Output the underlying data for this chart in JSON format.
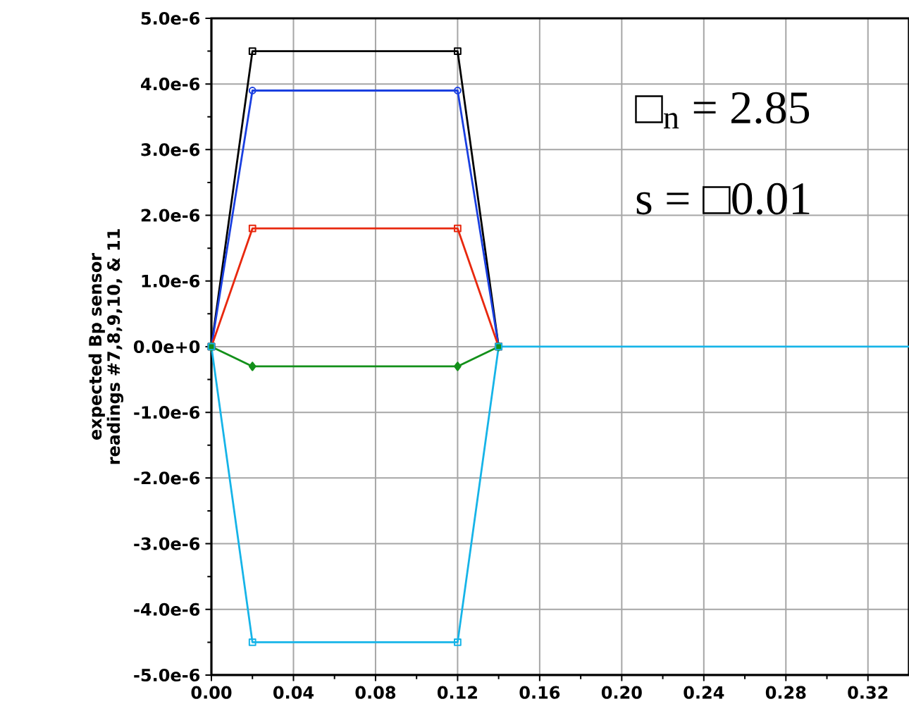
{
  "chart_data": {
    "type": "line",
    "ylabel": "expected  Bp  sensor  readings #7,8,9,10,  &  11",
    "annotations": [
      "□$_{n}$ = 2.85",
      "s = □0.01"
    ],
    "xlim": [
      0,
      0.34
    ],
    "xticks": [
      {
        "value": 0,
        "label": "0.00"
      },
      {
        "value": 0.04,
        "label": "0.04"
      },
      {
        "value": 0.08,
        "label": "0.08"
      },
      {
        "value": 0.12,
        "label": "0.12"
      },
      {
        "value": 0.16,
        "label": "0.16"
      },
      {
        "value": 0.2,
        "label": "0.20"
      },
      {
        "value": 0.24,
        "label": "0.24"
      },
      {
        "value": 0.28,
        "label": "0.28"
      },
      {
        "value": 0.32,
        "label": "0.32"
      }
    ],
    "ylim": [
      -5e-06,
      5e-06
    ],
    "yticks": [
      {
        "value": -5e-06,
        "label": "-5.0e-6"
      },
      {
        "value": -4e-06,
        "label": "-4.0e-6"
      },
      {
        "value": -3e-06,
        "label": "-3.0e-6"
      },
      {
        "value": -2e-06,
        "label": "-2.0e-6"
      },
      {
        "value": -1e-06,
        "label": "-1.0e-6"
      },
      {
        "value": 0,
        "label": "0.0e+0"
      },
      {
        "value": 1e-06,
        "label": "1.0e-6"
      },
      {
        "value": 2e-06,
        "label": "2.0e-6"
      },
      {
        "value": 3e-06,
        "label": "3.0e-6"
      },
      {
        "value": 4e-06,
        "label": "4.0e-6"
      },
      {
        "value": 5e-06,
        "label": "5.0e-6"
      }
    ],
    "grid": true,
    "line_style": "solid",
    "x": [
      0,
      0.02,
      0.12,
      0.14
    ],
    "series": [
      {
        "color": "#000000",
        "marker": "square",
        "values": [
          0,
          4.5e-06,
          4.5e-06,
          0
        ]
      },
      {
        "color": "#1a3fe0",
        "marker": "circle",
        "values": [
          0,
          3.9e-06,
          3.9e-06,
          0
        ]
      },
      {
        "color": "#e8280e",
        "marker": "square",
        "values": [
          0,
          1.8e-06,
          1.8e-06,
          0
        ]
      },
      {
        "color": "#13901a",
        "marker": "diamond",
        "values": [
          0,
          -3e-07,
          -3e-07,
          0
        ]
      },
      {
        "color": "#16b4e8",
        "marker": "square",
        "values": [
          0,
          -4.5e-06,
          -4.5e-06,
          0
        ]
      },
      {
        "color": "#16b4e8",
        "marker": "none",
        "x": [
          0.14,
          0.34
        ],
        "values": [
          0,
          0
        ]
      }
    ]
  }
}
